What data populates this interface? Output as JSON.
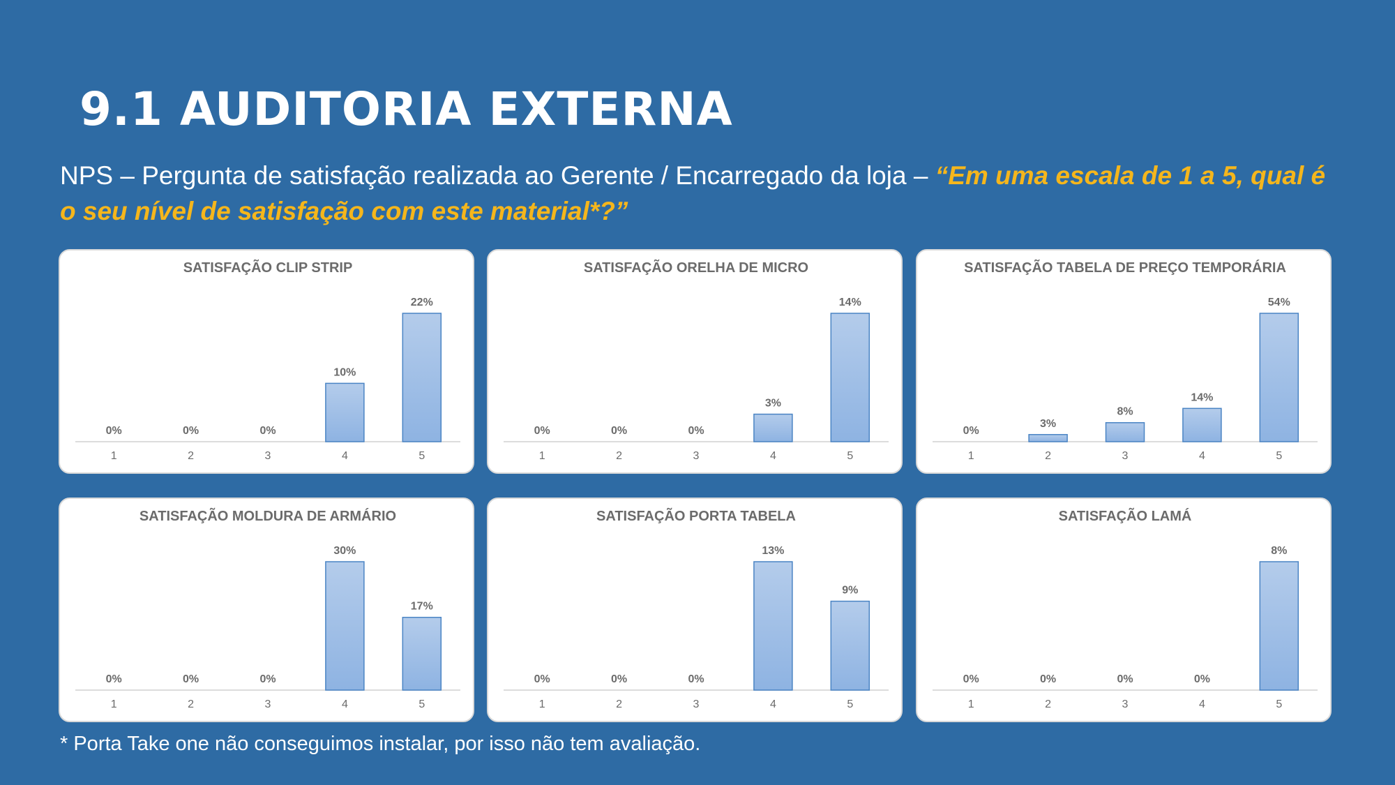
{
  "slide": {
    "title": "9.1  AUDITORIA EXTERNA",
    "subtitle_plain": "NPS – Pergunta de satisfação realizada ao Gerente / Encarregado da loja – ",
    "subtitle_quote": "“Em uma escala de 1 a 5, qual é o seu nível de satisfação com este material*?”",
    "footnote": "* Porta Take one não conseguimos instalar, por isso não tem avaliação.",
    "colors": {
      "background": "#2E6BA4",
      "quote": "#F5B61C",
      "bar_top": "#B4CCEB",
      "bar_bottom": "#8EB3E2",
      "bar_border": "#4A84C4"
    }
  },
  "chart_data": [
    {
      "type": "bar",
      "title": "SATISFAÇÃO  CLIP STRIP",
      "categories": [
        "1",
        "2",
        "3",
        "4",
        "5"
      ],
      "values": [
        0,
        0,
        0,
        10,
        22
      ],
      "labels": [
        "0%",
        "0%",
        "0%",
        "10%",
        "22%"
      ],
      "ylim": [
        0,
        22
      ],
      "grid": false,
      "legend": "none"
    },
    {
      "type": "bar",
      "title": "SATISFAÇÃO  ORELHA DE MICRO",
      "categories": [
        "1",
        "2",
        "3",
        "4",
        "5"
      ],
      "values": [
        0,
        0,
        0,
        3,
        14
      ],
      "labels": [
        "0%",
        "0%",
        "0%",
        "3%",
        "14%"
      ],
      "ylim": [
        0,
        14
      ],
      "grid": false,
      "legend": "none"
    },
    {
      "type": "bar",
      "title": "SATISFAÇÃO  TABELA DE PREÇO TEMPORÁRIA",
      "categories": [
        "1",
        "2",
        "3",
        "4",
        "5"
      ],
      "values": [
        0,
        3,
        8,
        14,
        54
      ],
      "labels": [
        "0%",
        "3%",
        "8%",
        "14%",
        "54%"
      ],
      "ylim": [
        0,
        54
      ],
      "grid": false,
      "legend": "none"
    },
    {
      "type": "bar",
      "title": "SATISFAÇÃO  MOLDURA DE ARMÁRIO",
      "categories": [
        "1",
        "2",
        "3",
        "4",
        "5"
      ],
      "values": [
        0,
        0,
        0,
        30,
        17
      ],
      "labels": [
        "0%",
        "0%",
        "0%",
        "30%",
        "17%"
      ],
      "ylim": [
        0,
        30
      ],
      "grid": false,
      "legend": "none"
    },
    {
      "type": "bar",
      "title": "SATISFAÇÃO  PORTA TABELA",
      "categories": [
        "1",
        "2",
        "3",
        "4",
        "5"
      ],
      "values": [
        0,
        0,
        0,
        13,
        9
      ],
      "labels": [
        "0%",
        "0%",
        "0%",
        "13%",
        "9%"
      ],
      "ylim": [
        0,
        13
      ],
      "grid": false,
      "legend": "none"
    },
    {
      "type": "bar",
      "title": "SATISFAÇÃO  LAMÁ",
      "categories": [
        "1",
        "2",
        "3",
        "4",
        "5"
      ],
      "values": [
        0,
        0,
        0,
        0,
        8
      ],
      "labels": [
        "0%",
        "0%",
        "0%",
        "0%",
        "8%"
      ],
      "ylim": [
        0,
        8
      ],
      "grid": false,
      "legend": "none"
    }
  ]
}
